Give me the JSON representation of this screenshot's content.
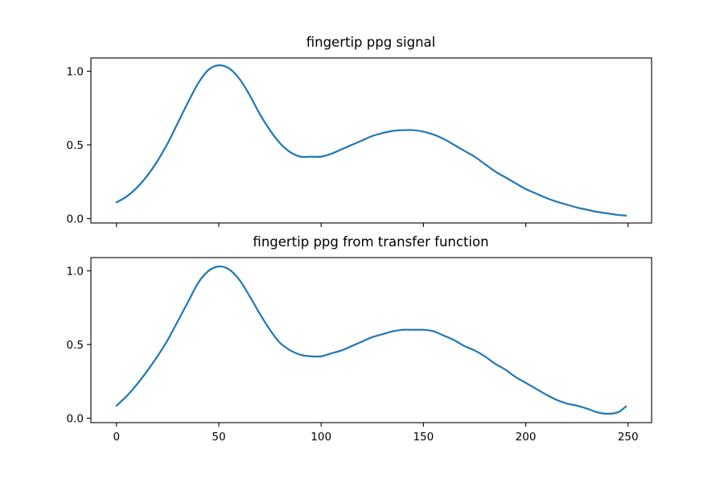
{
  "chart_data": [
    {
      "type": "line",
      "title": "fingertip ppg signal",
      "xlabel": "",
      "ylabel": "",
      "xlim": [
        -12.5,
        261.5
      ],
      "ylim": [
        -0.03,
        1.09
      ],
      "x_ticks": [
        0,
        50,
        100,
        150,
        200,
        250
      ],
      "x_tick_labels_visible": false,
      "y_ticks": [
        0.0,
        0.5,
        1.0
      ],
      "y_tick_labels": [
        "0.0",
        "0.5",
        "1.0"
      ],
      "grid": false,
      "series": [
        {
          "color": "#1f77b4",
          "x": [
            0,
            5,
            10,
            15,
            20,
            25,
            30,
            35,
            40,
            45,
            50,
            55,
            60,
            65,
            70,
            75,
            80,
            85,
            90,
            95,
            100,
            105,
            110,
            115,
            120,
            125,
            130,
            135,
            140,
            145,
            150,
            155,
            160,
            165,
            170,
            175,
            180,
            185,
            190,
            195,
            200,
            205,
            210,
            215,
            220,
            225,
            230,
            235,
            240,
            245,
            249
          ],
          "y": [
            0.11,
            0.15,
            0.21,
            0.29,
            0.39,
            0.51,
            0.65,
            0.79,
            0.92,
            1.01,
            1.04,
            1.02,
            0.95,
            0.84,
            0.71,
            0.6,
            0.51,
            0.45,
            0.42,
            0.42,
            0.42,
            0.44,
            0.47,
            0.5,
            0.53,
            0.56,
            0.58,
            0.595,
            0.6,
            0.6,
            0.59,
            0.57,
            0.54,
            0.5,
            0.46,
            0.42,
            0.37,
            0.32,
            0.28,
            0.24,
            0.2,
            0.17,
            0.14,
            0.115,
            0.095,
            0.075,
            0.06,
            0.045,
            0.035,
            0.025,
            0.02
          ]
        }
      ]
    },
    {
      "type": "line",
      "title": "fingertip ppg from transfer function",
      "xlabel": "",
      "ylabel": "",
      "xlim": [
        -12.5,
        261.5
      ],
      "ylim": [
        -0.03,
        1.09
      ],
      "x_ticks": [
        0,
        50,
        100,
        150,
        200,
        250
      ],
      "x_tick_labels": [
        "0",
        "50",
        "100",
        "150",
        "200",
        "250"
      ],
      "y_ticks": [
        0.0,
        0.5,
        1.0
      ],
      "y_tick_labels": [
        "0.0",
        "0.5",
        "1.0"
      ],
      "grid": false,
      "series": [
        {
          "color": "#1f77b4",
          "x": [
            0,
            5,
            10,
            15,
            20,
            25,
            30,
            35,
            40,
            45,
            50,
            55,
            60,
            65,
            70,
            75,
            80,
            85,
            90,
            95,
            100,
            105,
            110,
            115,
            120,
            125,
            130,
            135,
            140,
            145,
            150,
            155,
            160,
            165,
            170,
            175,
            180,
            185,
            190,
            195,
            200,
            205,
            210,
            215,
            220,
            225,
            230,
            235,
            240,
            245,
            249
          ],
          "y": [
            0.085,
            0.15,
            0.23,
            0.32,
            0.42,
            0.53,
            0.66,
            0.79,
            0.92,
            1.0,
            1.03,
            1.01,
            0.94,
            0.83,
            0.71,
            0.6,
            0.51,
            0.46,
            0.43,
            0.42,
            0.42,
            0.44,
            0.46,
            0.49,
            0.52,
            0.55,
            0.57,
            0.59,
            0.6,
            0.6,
            0.6,
            0.59,
            0.56,
            0.53,
            0.49,
            0.46,
            0.42,
            0.37,
            0.33,
            0.28,
            0.24,
            0.2,
            0.16,
            0.125,
            0.1,
            0.085,
            0.065,
            0.04,
            0.03,
            0.04,
            0.08
          ]
        }
      ]
    }
  ]
}
